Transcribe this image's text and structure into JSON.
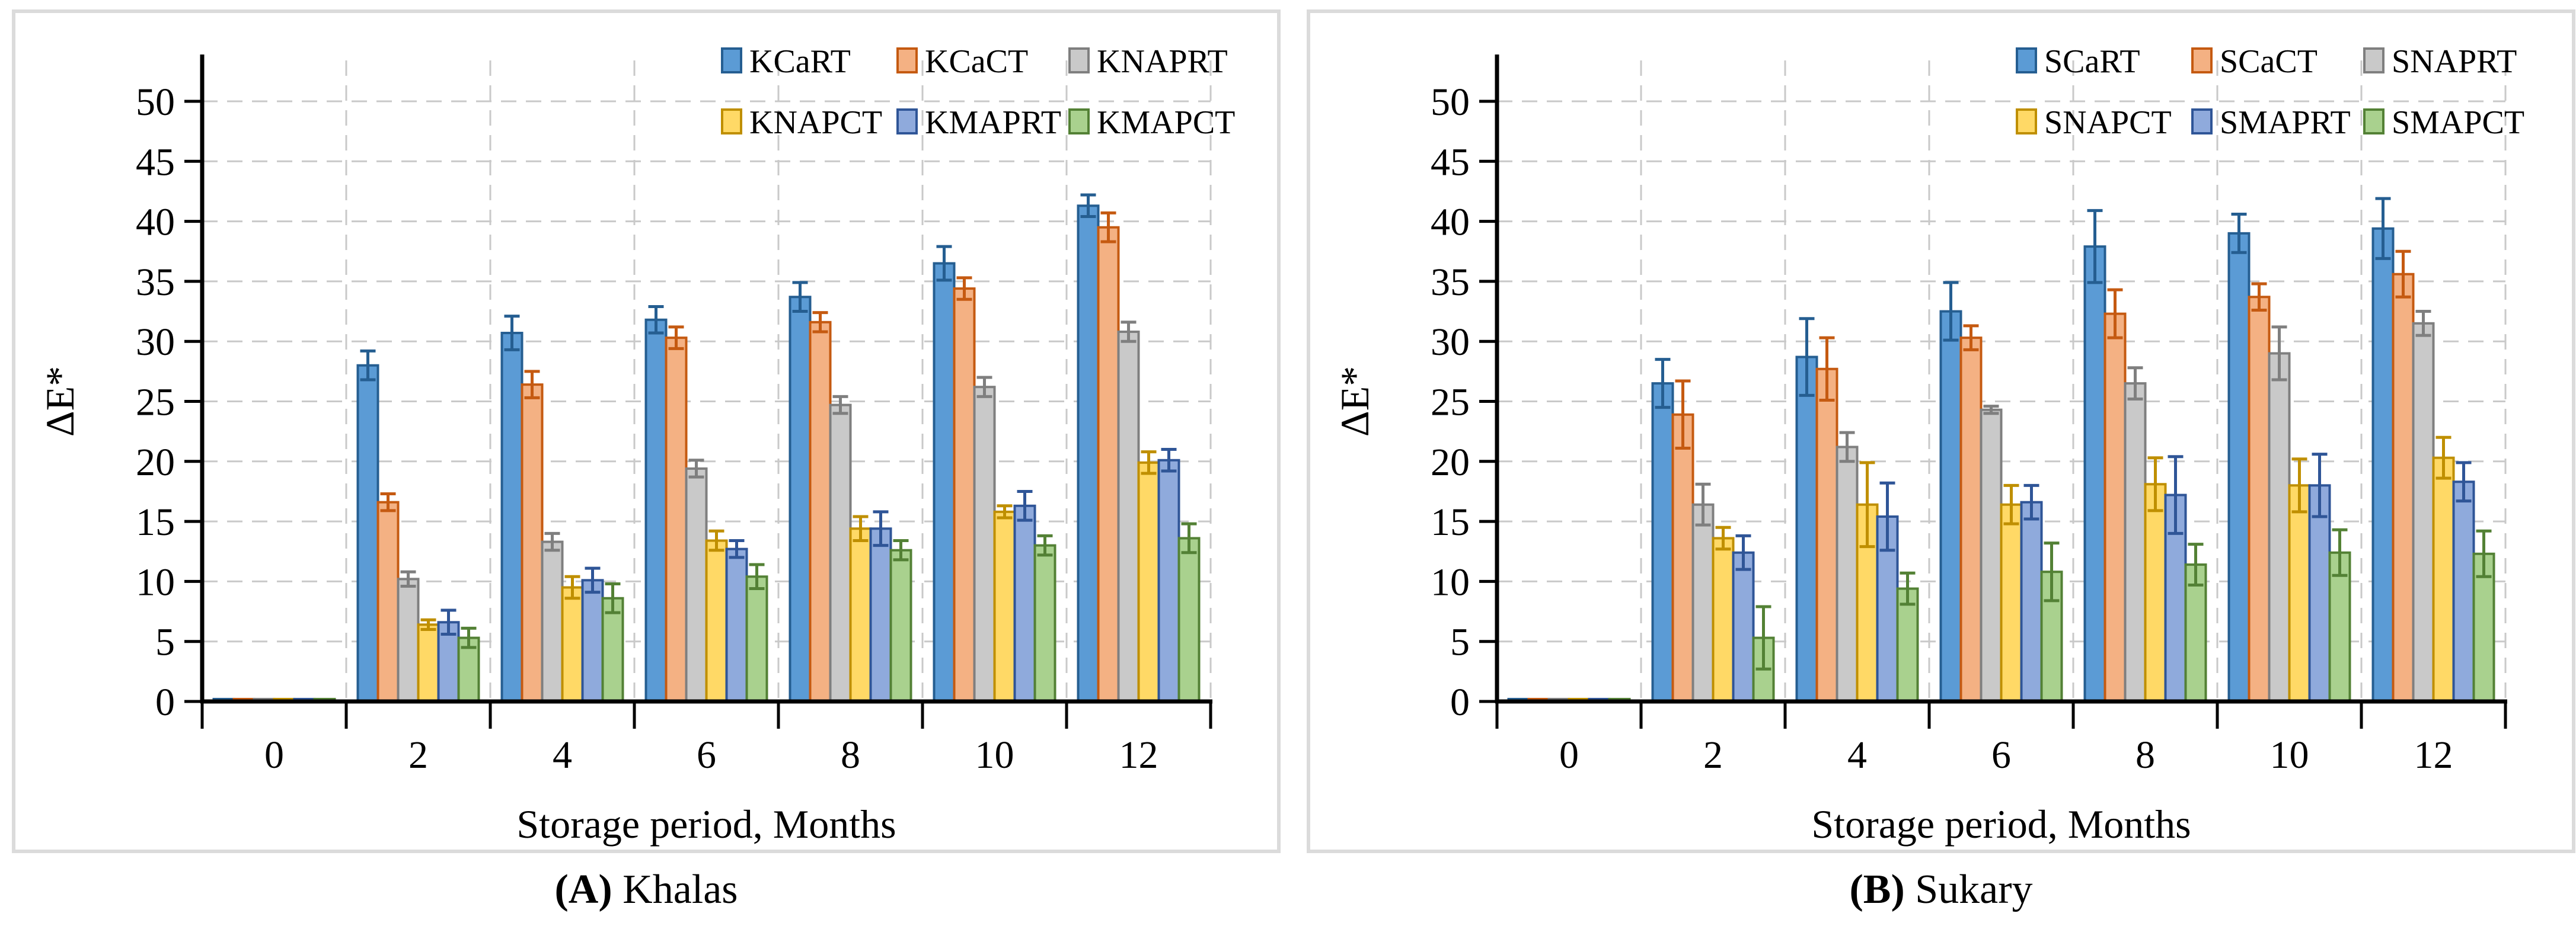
{
  "figure": {
    "background": "#ffffff",
    "panel_border_color": "#dbdbdb",
    "gridline_color": "#c9c9c9",
    "axis_color": "#000000"
  },
  "chart_data": [
    {
      "type": "bar",
      "panel": "A",
      "caption_bold": "(A)",
      "caption_label": " Khalas",
      "xlabel": "Storage period, Months",
      "ylabel": "ΔE*",
      "ylim": [
        0,
        50
      ],
      "ystep": 5,
      "grid": "dashed horizontal and vertical",
      "legend_position": "top-right, 2 rows of 3",
      "error_bars": "plus-minus with caps",
      "categories": [
        "0",
        "2",
        "4",
        "6",
        "8",
        "10",
        "12"
      ],
      "series": [
        {
          "name": "KCaRT",
          "fill": "#5b9bd5",
          "stroke": "#255e91",
          "values": [
            0.2,
            28.0,
            30.7,
            31.8,
            33.7,
            36.5,
            41.3
          ],
          "errors": [
            0,
            1.2,
            1.4,
            1.1,
            1.2,
            1.4,
            0.9
          ]
        },
        {
          "name": "KCaCT",
          "fill": "#f4b183",
          "stroke": "#c55a11",
          "values": [
            0.2,
            16.6,
            26.4,
            30.3,
            31.6,
            34.4,
            39.5
          ],
          "errors": [
            0,
            0.7,
            1.1,
            0.9,
            0.8,
            0.9,
            1.2
          ]
        },
        {
          "name": "KNAPRT",
          "fill": "#c9c9c9",
          "stroke": "#7f7f7f",
          "values": [
            0.2,
            10.2,
            13.3,
            19.4,
            24.7,
            26.2,
            30.8
          ],
          "errors": [
            0,
            0.6,
            0.7,
            0.7,
            0.7,
            0.8,
            0.8
          ]
        },
        {
          "name": "KNAPCT",
          "fill": "#ffd966",
          "stroke": "#bf8f00",
          "values": [
            0.2,
            6.4,
            9.5,
            13.4,
            14.4,
            15.8,
            19.9
          ],
          "errors": [
            0,
            0.4,
            0.9,
            0.8,
            1.0,
            0.5,
            0.9
          ]
        },
        {
          "name": "KMAPRT",
          "fill": "#8faadc",
          "stroke": "#2f5597",
          "values": [
            0.2,
            6.6,
            10.1,
            12.7,
            14.4,
            16.3,
            20.1
          ],
          "errors": [
            0,
            1.0,
            1.0,
            0.7,
            1.4,
            1.2,
            0.9
          ]
        },
        {
          "name": "KMAPCT",
          "fill": "#a9d18e",
          "stroke": "#538135",
          "values": [
            0.2,
            5.3,
            8.6,
            10.4,
            12.6,
            13.0,
            13.6
          ],
          "errors": [
            0,
            0.8,
            1.2,
            1.0,
            0.8,
            0.8,
            1.2
          ]
        }
      ]
    },
    {
      "type": "bar",
      "panel": "B",
      "caption_bold": "(B)",
      "caption_label": " Sukary",
      "xlabel": "Storage period, Months",
      "ylabel": "ΔE*",
      "ylim": [
        0,
        50
      ],
      "ystep": 5,
      "grid": "dashed horizontal and vertical",
      "legend_position": "top-right, 2 rows of 3",
      "error_bars": "plus-minus with caps",
      "categories": [
        "0",
        "2",
        "4",
        "6",
        "8",
        "10",
        "12"
      ],
      "series": [
        {
          "name": "SCaRT",
          "fill": "#5b9bd5",
          "stroke": "#255e91",
          "values": [
            0.2,
            26.5,
            28.7,
            32.5,
            37.9,
            39.0,
            39.4
          ],
          "errors": [
            0,
            2.0,
            3.2,
            2.4,
            3.0,
            1.6,
            2.5
          ]
        },
        {
          "name": "SCaCT",
          "fill": "#f4b183",
          "stroke": "#c55a11",
          "values": [
            0.2,
            23.9,
            27.7,
            30.3,
            32.3,
            33.7,
            35.6
          ],
          "errors": [
            0,
            2.8,
            2.6,
            1.0,
            2.0,
            1.1,
            1.9
          ]
        },
        {
          "name": "SNAPRT",
          "fill": "#c9c9c9",
          "stroke": "#7f7f7f",
          "values": [
            0.2,
            16.4,
            21.2,
            24.3,
            26.5,
            29.0,
            31.5
          ],
          "errors": [
            0,
            1.7,
            1.2,
            0.3,
            1.3,
            2.2,
            1.0
          ]
        },
        {
          "name": "SNAPCT",
          "fill": "#ffd966",
          "stroke": "#bf8f00",
          "values": [
            0.2,
            13.6,
            16.4,
            16.4,
            18.1,
            18.0,
            20.3
          ],
          "errors": [
            0,
            0.9,
            3.5,
            1.6,
            2.2,
            2.2,
            1.7
          ]
        },
        {
          "name": "SMAPRT",
          "fill": "#8faadc",
          "stroke": "#2f5597",
          "values": [
            0.2,
            12.4,
            15.4,
            16.6,
            17.2,
            18.0,
            18.3
          ],
          "errors": [
            0,
            1.4,
            2.8,
            1.4,
            3.2,
            2.6,
            1.6
          ]
        },
        {
          "name": "SMAPCT",
          "fill": "#a9d18e",
          "stroke": "#538135",
          "values": [
            0.2,
            5.3,
            9.4,
            10.8,
            11.4,
            12.4,
            12.3
          ],
          "errors": [
            0,
            2.6,
            1.3,
            2.4,
            1.7,
            1.9,
            1.9
          ]
        }
      ]
    }
  ]
}
